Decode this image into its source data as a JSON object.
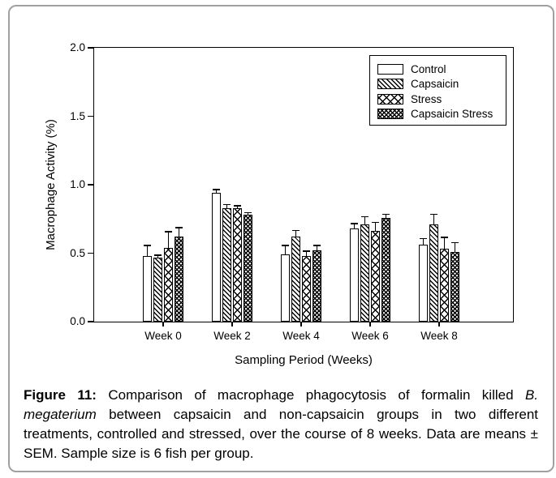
{
  "figure": {
    "caption": {
      "label": "Figure 11:",
      "text_before_italic": " Comparison of macrophage phagocytosis of formalin killed ",
      "italic": "B. megaterium",
      "text_after_italic": " between capsaicin and non-capsaicin groups in two different treatments, controlled and stressed, over the course of 8 weeks. Data are means ± SEM. Sample size is 6 fish per group."
    }
  },
  "chart_data": {
    "type": "bar",
    "title": "",
    "xlabel": "Sampling Period (Weeks)",
    "ylabel": "Macrophage Activity (%)",
    "ylim": [
      0.0,
      2.0
    ],
    "ytick_labels": [
      "0.0",
      "0.5",
      "1.0",
      "1.5",
      "2.0"
    ],
    "categories": [
      "Week 0",
      "Week 2",
      "Week 4",
      "Week 6",
      "Week 8"
    ],
    "grid": false,
    "legend_position": "top-right-inside",
    "error_type": "SEM",
    "sample_size_note": "6 fish per group",
    "series": [
      {
        "name": "Control",
        "pattern": "solid-white",
        "values": [
          0.48,
          0.94,
          0.49,
          0.68,
          0.56
        ],
        "sem": [
          0.08,
          0.03,
          0.07,
          0.04,
          0.05
        ]
      },
      {
        "name": "Capsaicin",
        "pattern": "diagonal-hatch",
        "values": [
          0.47,
          0.83,
          0.62,
          0.71,
          0.71
        ],
        "sem": [
          0.02,
          0.03,
          0.05,
          0.06,
          0.08
        ]
      },
      {
        "name": "Stress",
        "pattern": "cross-hatch-wide",
        "values": [
          0.54,
          0.83,
          0.48,
          0.66,
          0.53
        ],
        "sem": [
          0.12,
          0.02,
          0.04,
          0.07,
          0.09
        ]
      },
      {
        "name": "Capsaicin Stress",
        "pattern": "cross-hatch-dense",
        "values": [
          0.62,
          0.78,
          0.52,
          0.76,
          0.51
        ],
        "sem": [
          0.07,
          0.02,
          0.04,
          0.03,
          0.07
        ]
      }
    ]
  },
  "colors": {
    "background": "#ffffff",
    "card_border": "#a0a0a0",
    "bar_stroke": "#000000",
    "text": "#000000"
  }
}
